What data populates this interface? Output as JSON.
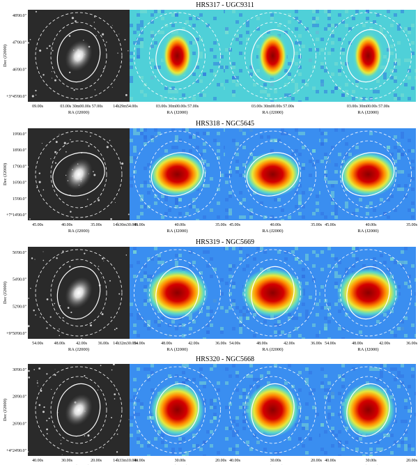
{
  "rows": [
    {
      "title": "HRS317 - UGC9311",
      "ylabel": "Dec (J2000)",
      "yticks": [
        "48'00.0\"",
        "47'00.0\"",
        "46'00.0\"",
        "+3°45'00.0\""
      ],
      "panels": [
        {
          "xticks": [
            "09.00s",
            "03.00s 30m00.00s 57.00s",
            "14h29m54.00s"
          ],
          "xlabel": "RA (J2000)"
        },
        {
          "xticks": [
            "03.00s 30m00.00s 57.00s"
          ],
          "xlabel": "RA (J2000)"
        },
        {
          "xticks": [
            "03.00s 30m00.00s 57.00s"
          ],
          "xlabel": "RA (J2000)"
        },
        {
          "xticks": [
            "03.00s 30m00.00s 57.00s"
          ],
          "xlabel": "RA (J2000)"
        }
      ]
    },
    {
      "title": "HRS318 - NGC5645",
      "ylabel": "Dec (J2000)",
      "yticks": [
        "19'00.0\"",
        "18'00.0\"",
        "17'00.0\"",
        "16'00.0\"",
        "15'00.0\"",
        "+7°14'00.0\""
      ],
      "panels": [
        {
          "xticks": [
            "45.00s",
            "40.00s",
            "35.00s",
            "14h30m30.00s"
          ],
          "xlabel": "RA (J2000)"
        },
        {
          "xticks": [
            "45.00s",
            "40.00s",
            "35.00s"
          ],
          "xlabel": "RA (J2000)"
        },
        {
          "xticks": [
            "45.00s",
            "40.00s",
            "35.00s"
          ],
          "xlabel": "RA (J2000)"
        },
        {
          "xticks": [
            "45.00s",
            "40.00s",
            "35.00s"
          ],
          "xlabel": "RA (J2000)"
        }
      ]
    },
    {
      "title": "HRS319 - NGC5669",
      "ylabel": "Dec (J2000)",
      "yticks": [
        "56'00.0\"",
        "54'00.0\"",
        "52'00.0\"",
        "+9°50'00.0\""
      ],
      "panels": [
        {
          "xticks": [
            "54.00s",
            "48.00s",
            "42.00s",
            "36.00s",
            "14h32m30.00s"
          ],
          "xlabel": "RA (J2000)"
        },
        {
          "xticks": [
            "54.00s",
            "48.00s",
            "42.00s",
            "36.00s"
          ],
          "xlabel": "RA (J2000)"
        },
        {
          "xticks": [
            "54.00s",
            "48.00s",
            "42.00s",
            "36.00s"
          ],
          "xlabel": "RA (J2000)"
        },
        {
          "xticks": [
            "54.00s",
            "48.00s",
            "42.00s",
            "36.00s"
          ],
          "xlabel": "RA (J2000)"
        }
      ]
    },
    {
      "title": "HRS320 - NGC5668",
      "ylabel": "Dec (J2000)",
      "yticks": [
        "30'00.0\"",
        "28'00.0\"",
        "26'00.0\"",
        "+4°24'00.0\""
      ],
      "panels": [
        {
          "xticks": [
            "40.00s",
            "30.00s",
            "20.00s",
            "14h33m10.00s"
          ],
          "xlabel": "RA (J2000)"
        },
        {
          "xticks": [
            "40.00s",
            "30.00s",
            "20.00s"
          ],
          "xlabel": "RA (J2000)"
        },
        {
          "xticks": [
            "40.00s",
            "30.00s",
            "20.00s"
          ],
          "xlabel": "RA (J2000)"
        },
        {
          "xticks": [
            "40.00s",
            "30.00s",
            "20.00s"
          ],
          "xlabel": "RA (J2000)"
        }
      ]
    }
  ]
}
